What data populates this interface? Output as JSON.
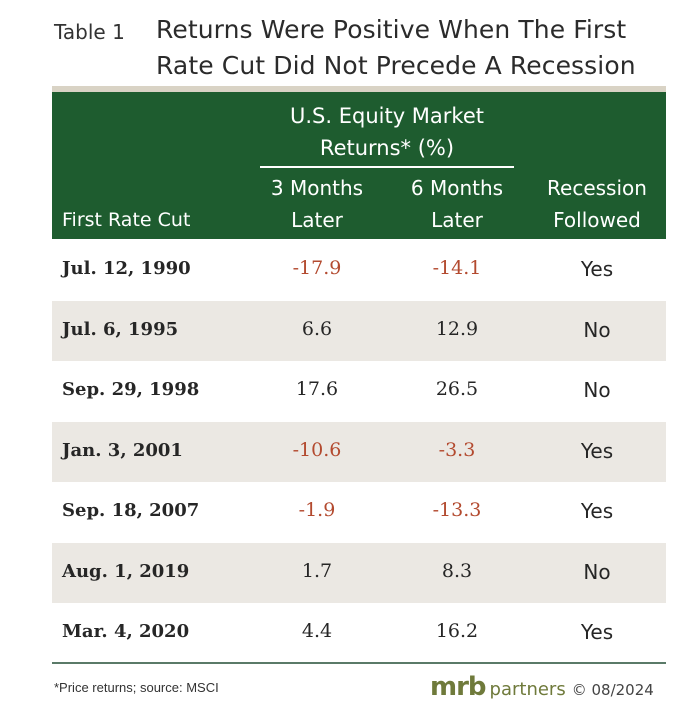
{
  "table_label": "Table 1",
  "title_line1": "Returns Were Positive When The First",
  "title_line2": "Rate Cut Did Not Precede A Recession",
  "header": {
    "group_line1": "U.S. Equity Market",
    "group_line2": "Returns* (%)",
    "col_first_cut": "First Rate Cut",
    "col_3m_line1": "3 Months",
    "col_3m_line2": "Later",
    "col_6m_line1": "6 Months",
    "col_6m_line2": "Later",
    "col_rec_line1": "Recession",
    "col_rec_line2": "Followed"
  },
  "rows": [
    {
      "date": "Jul. 12, 1990",
      "m3": "-17.9",
      "m6": "-14.1",
      "recession": "Yes"
    },
    {
      "date": "Jul. 6, 1995",
      "m3": "6.6",
      "m6": "12.9",
      "recession": "No"
    },
    {
      "date": "Sep. 29, 1998",
      "m3": "17.6",
      "m6": "26.5",
      "recession": "No"
    },
    {
      "date": "Jan. 3, 2001",
      "m3": "-10.6",
      "m6": "-3.3",
      "recession": "Yes"
    },
    {
      "date": "Sep. 18, 2007",
      "m3": "-1.9",
      "m6": "-13.3",
      "recession": "Yes"
    },
    {
      "date": "Aug. 1, 2019",
      "m3": "1.7",
      "m6": "8.3",
      "recession": "No"
    },
    {
      "date": "Mar. 4, 2020",
      "m3": "4.4",
      "m6": "16.2",
      "recession": "Yes"
    }
  ],
  "footnote": "*Price returns; source: MSCI",
  "logo": {
    "mrb": "mrb",
    "partners": "partners",
    "copyright": "© 08/2024"
  },
  "colors": {
    "header_bg": "#1e5c2f",
    "negative": "#b34a2f",
    "shade": "#ebe8e3"
  }
}
